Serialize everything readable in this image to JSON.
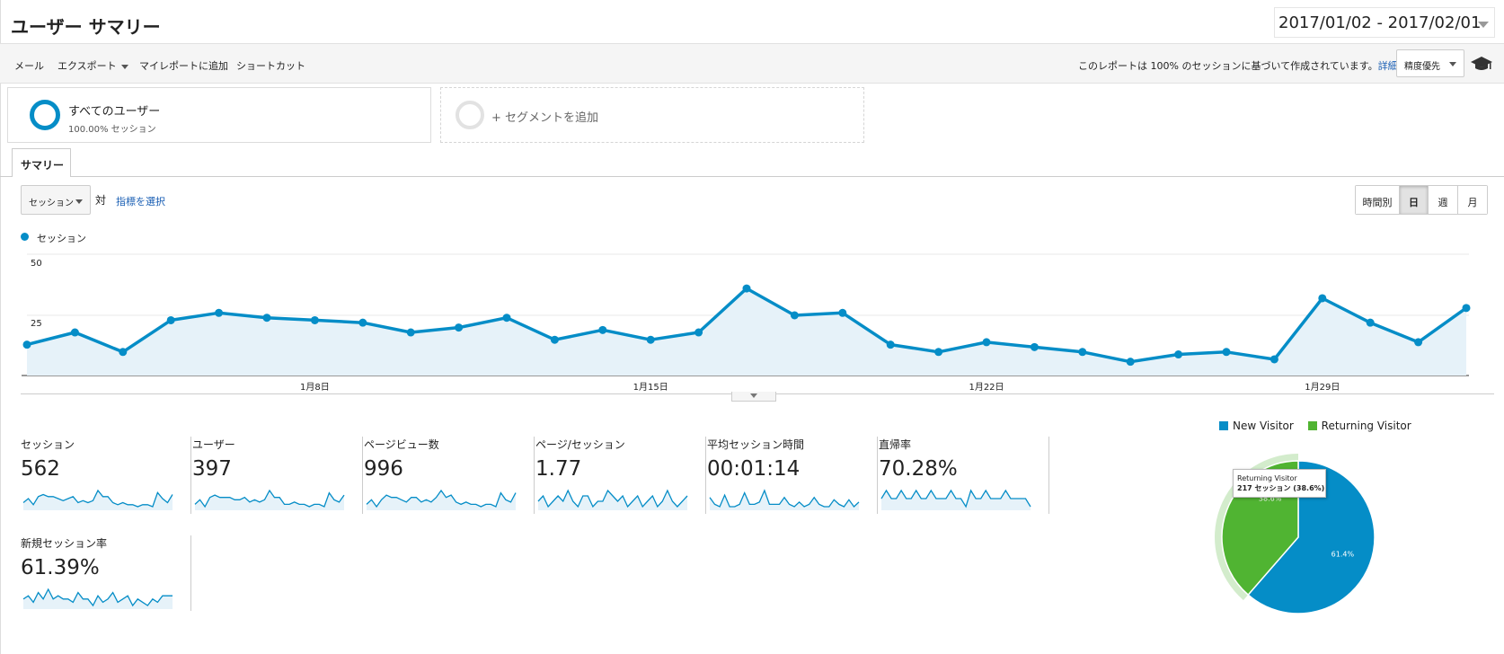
{
  "header": {
    "title": "ユーザー サマリー",
    "date_range": "2017/01/02 - 2017/02/01"
  },
  "toolbar": {
    "items": [
      "メール",
      "エクスポート",
      "マイレポートに追加",
      "ショートカット"
    ],
    "report_note": "このレポートは 100% のセッションに基づいて作成されています。",
    "details_link": "詳細",
    "precision": "精度優先"
  },
  "segments": {
    "all_users": {
      "name": "すべてのユーザー",
      "sub": "100.00% セッション"
    },
    "add_label": "+ セグメントを追加"
  },
  "tab": {
    "label": "サマリー"
  },
  "controls": {
    "metric_select": "セッション",
    "vs_label": "対",
    "choose_metric": "指標を選択",
    "time_buttons": [
      "時間別",
      "日",
      "週",
      "月"
    ],
    "time_active": "日"
  },
  "chart_data": {
    "type": "line",
    "legend": [
      "セッション"
    ],
    "y_ticks": [
      "50",
      "25"
    ],
    "ylim": [
      0,
      50
    ],
    "grid": true,
    "color": "#058dc7",
    "x_labels": [
      {
        "index": 6,
        "label": "1月8日"
      },
      {
        "index": 13,
        "label": "1月15日"
      },
      {
        "index": 20,
        "label": "1月22日"
      },
      {
        "index": 27,
        "label": "1月29日"
      }
    ],
    "series": [
      {
        "values": [
          13,
          18,
          10,
          23,
          26,
          24,
          23,
          22,
          18,
          20,
          24,
          15,
          19,
          15,
          18,
          36,
          25,
          26,
          13,
          10,
          14,
          12,
          10,
          6,
          9,
          10,
          7,
          32,
          22,
          14,
          28
        ]
      }
    ]
  },
  "metrics": [
    {
      "title": "セッション",
      "value": "562",
      "spark": [
        4,
        6,
        3,
        7,
        8,
        7,
        7,
        6,
        5,
        6,
        7,
        4,
        5,
        4,
        5,
        10,
        7,
        7,
        4,
        3,
        4,
        3,
        3,
        2,
        3,
        3,
        2,
        9,
        6,
        4,
        8
      ]
    },
    {
      "title": "ユーザー",
      "value": "397",
      "spark": [
        3,
        5,
        2,
        6,
        7,
        6,
        6,
        6,
        5,
        5,
        6,
        4,
        5,
        4,
        5,
        9,
        6,
        6,
        3,
        3,
        4,
        3,
        3,
        2,
        3,
        3,
        2,
        8,
        5,
        4,
        7
      ]
    },
    {
      "title": "ページビュー数",
      "value": "996",
      "spark": [
        3,
        5,
        2,
        5,
        7,
        6,
        6,
        5,
        4,
        6,
        6,
        4,
        5,
        4,
        6,
        9,
        6,
        7,
        4,
        3,
        4,
        3,
        3,
        2,
        3,
        3,
        2,
        8,
        5,
        4,
        8
      ]
    },
    {
      "title": "ページ/セッション",
      "value": "1.77",
      "spark": [
        6,
        7,
        5,
        6,
        7,
        6,
        8,
        6,
        5,
        7,
        7,
        5,
        6,
        6,
        8,
        7,
        6,
        7,
        5,
        6,
        7,
        5,
        6,
        7,
        5,
        6,
        8,
        6,
        5,
        6,
        7
      ]
    },
    {
      "title": "平均セッション時間",
      "value": "00:01:14",
      "spark": [
        6,
        3,
        2,
        7,
        2,
        2,
        3,
        8,
        3,
        3,
        4,
        9,
        3,
        3,
        3,
        6,
        3,
        2,
        4,
        2,
        3,
        6,
        3,
        2,
        2,
        5,
        3,
        2,
        5,
        2,
        4
      ]
    },
    {
      "title": "直帰率",
      "value": "70.28%",
      "spark": [
        7,
        8,
        7,
        7,
        8,
        7,
        7,
        8,
        7,
        7,
        8,
        7,
        7,
        7,
        8,
        7,
        7,
        6,
        8,
        7,
        7,
        8,
        7,
        7,
        7,
        8,
        7,
        7,
        7,
        7,
        6
      ]
    },
    {
      "title": "新規セッション率",
      "value": "61.39%",
      "spark": [
        6,
        7,
        5,
        8,
        6,
        9,
        6,
        7,
        6,
        6,
        5,
        8,
        6,
        6,
        4,
        7,
        5,
        6,
        8,
        5,
        6,
        7,
        4,
        6,
        5,
        4,
        6,
        5,
        7,
        7,
        7
      ]
    }
  ],
  "pie_data": {
    "type": "pie",
    "legend": [
      "New Visitor",
      "Returning Visitor"
    ],
    "slices": [
      {
        "name": "New Visitor",
        "value": 61.4,
        "label": "61.4%",
        "color": "#058dc7"
      },
      {
        "name": "Returning Visitor",
        "value": 38.6,
        "label": "38.6%",
        "color": "#50b432"
      }
    ],
    "tooltip": {
      "title": "Returning Visitor",
      "detail": "217 セッション (38.6%)"
    }
  }
}
